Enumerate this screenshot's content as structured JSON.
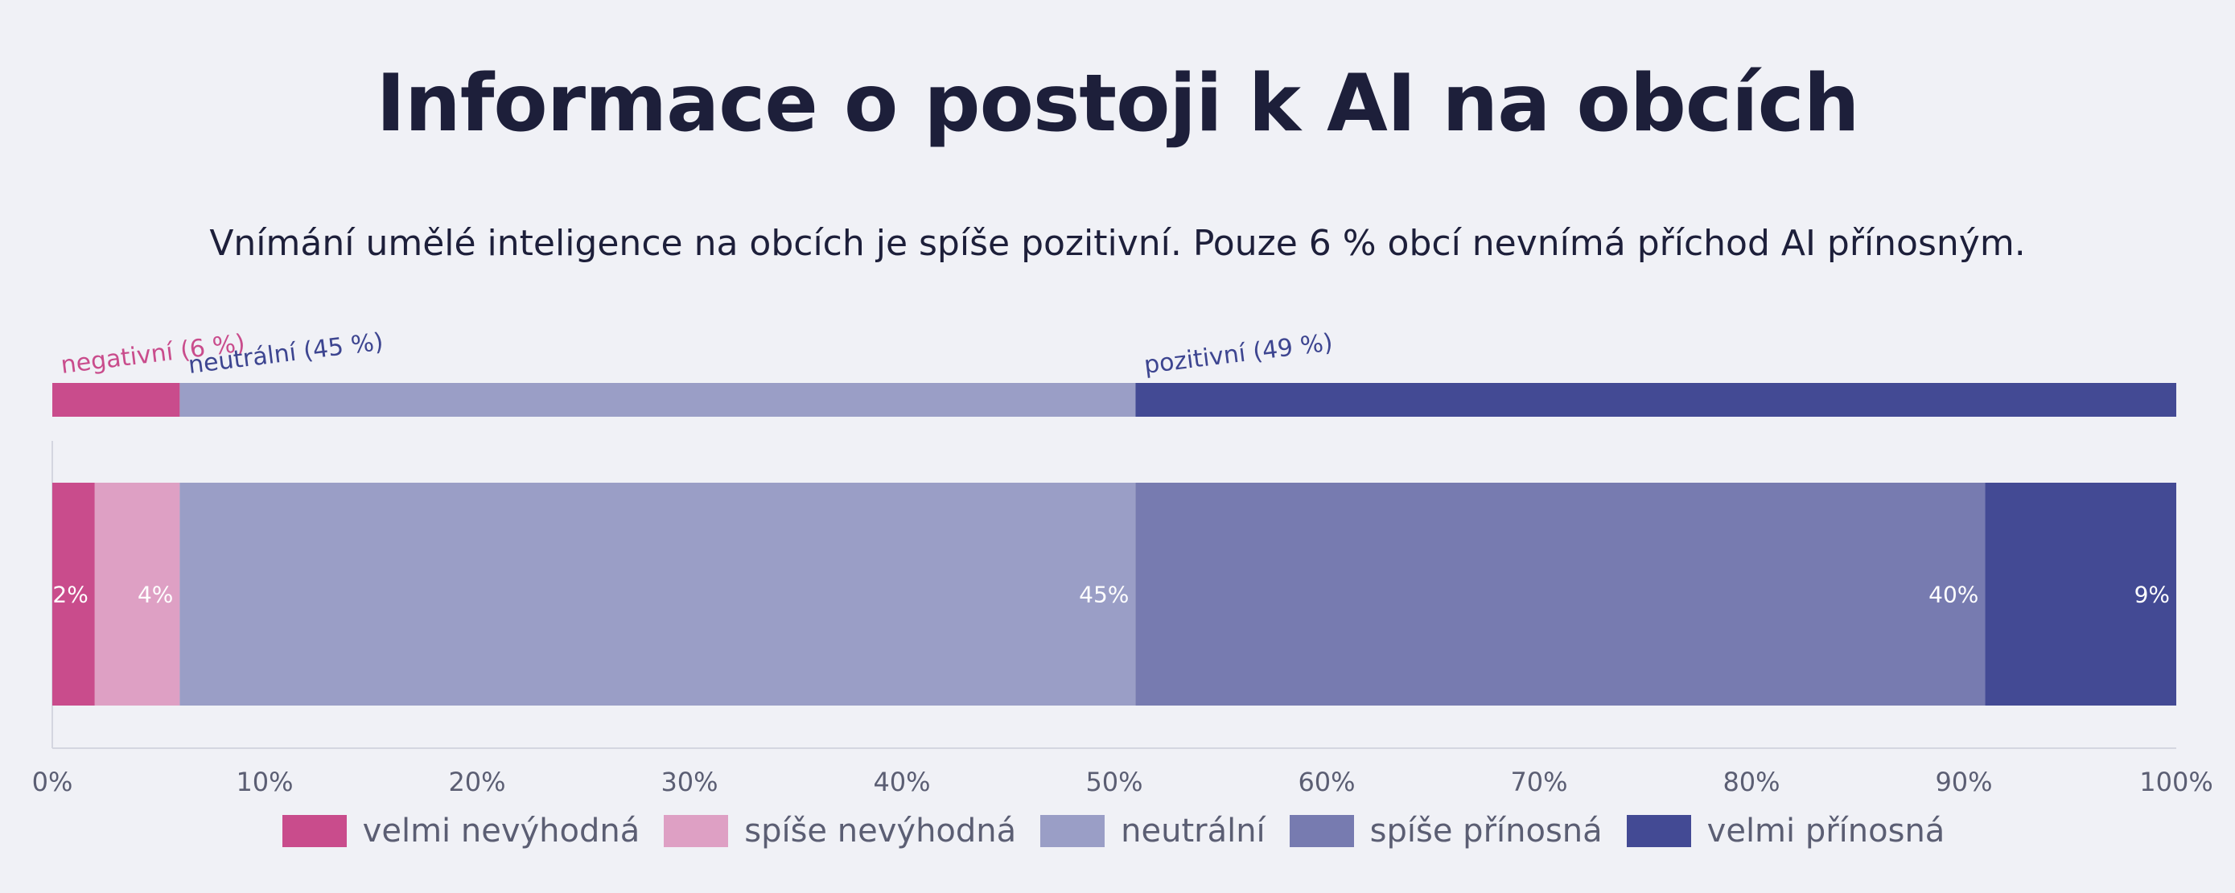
{
  "chart_data": {
    "type": "bar",
    "orientation": "horizontal",
    "stacked": true,
    "title": "Informace o postoji k AI na obcích",
    "subtitle": "Vnímání umělé inteligence na obcích je spíše pozitivní. Pouze 6 % obcí nevnímá příchod AI přínosným.",
    "xlim": [
      0,
      100
    ],
    "x_ticks": [
      "0%",
      "10%",
      "20%",
      "30%",
      "40%",
      "50%",
      "60%",
      "70%",
      "80%",
      "90%",
      "100%"
    ],
    "legend_position": "bottom",
    "grid": false,
    "summary_bar": [
      {
        "label": "negativní (6 %)",
        "value": 6,
        "color": "#c94c8c",
        "label_color": "#c94c8c"
      },
      {
        "label": "neutrální (45 %)",
        "value": 45,
        "color": "#9a9ec6",
        "label_color": "#3d4590"
      },
      {
        "label": "pozitivní (49 %)",
        "value": 49,
        "color": "#434a94",
        "label_color": "#3d4590"
      }
    ],
    "series": [
      {
        "name": "velmi nevýhodná",
        "value": 2,
        "label": "2%",
        "color": "#c94c8c"
      },
      {
        "name": "spíše nevýhodná",
        "value": 4,
        "label": "4%",
        "color": "#dea0c4"
      },
      {
        "name": "neutrální",
        "value": 45,
        "label": "45%",
        "color": "#9a9ec6"
      },
      {
        "name": "spíše přínosná",
        "value": 40,
        "label": "40%",
        "color": "#777bb0"
      },
      {
        "name": "velmi přínosná",
        "value": 9,
        "label": "9%",
        "color": "#434a94"
      }
    ]
  }
}
